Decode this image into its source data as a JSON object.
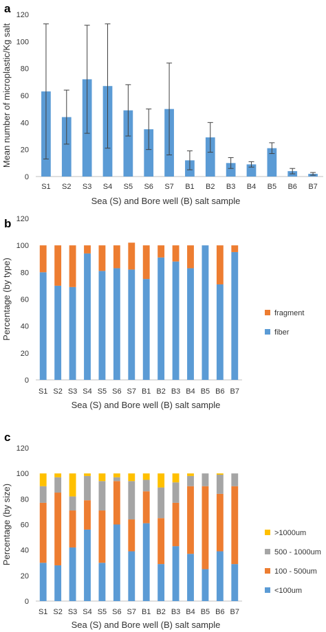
{
  "chart_data": [
    {
      "panel": "a",
      "type": "bar",
      "xlabel": "Sea (S) and Bore well (B) salt sample",
      "ylabel": "Mean number of microplastic/Kg salt",
      "categories": [
        "S1",
        "S2",
        "S3",
        "S4",
        "S5",
        "S6",
        "S7",
        "B1",
        "B2",
        "B3",
        "B4",
        "B5",
        "B6",
        "B7"
      ],
      "ylim": [
        0,
        120
      ],
      "yticks": [
        0,
        20,
        40,
        60,
        80,
        100,
        120
      ],
      "grid": false,
      "legend": "none",
      "colors": {
        "bar": "#5B9BD5",
        "error": "#404040"
      },
      "series": [
        {
          "values": [
            63,
            44,
            72,
            67,
            49,
            35,
            50,
            12,
            29,
            10,
            9,
            21,
            4,
            2
          ],
          "error": [
            50,
            20,
            40,
            46,
            19,
            15,
            34,
            7,
            11,
            4,
            2,
            4,
            2,
            1
          ]
        }
      ]
    },
    {
      "panel": "b",
      "type": "bar",
      "stacked": true,
      "xlabel": "Sea  (S) and Bore well  (B)  salt sample",
      "ylabel": "Percentage (by type)",
      "categories": [
        "S1",
        "S2",
        "S3",
        "S4",
        "S5",
        "S6",
        "S7",
        "B1",
        "B2",
        "B3",
        "B4",
        "B5",
        "B6",
        "B7"
      ],
      "ylim": [
        0,
        120
      ],
      "yticks": [
        0,
        20,
        40,
        60,
        80,
        100,
        120
      ],
      "grid": false,
      "legend": "right",
      "series": [
        {
          "name": "fiber",
          "color": "#5B9BD5",
          "values": [
            80,
            70,
            69,
            94,
            81,
            83,
            82,
            75,
            91,
            88,
            83,
            100,
            71,
            95
          ]
        },
        {
          "name": "fragment",
          "color": "#ED7D31",
          "values": [
            20,
            30,
            31,
            6,
            19,
            17,
            20,
            25,
            9,
            12,
            17,
            0,
            29,
            5
          ]
        }
      ]
    },
    {
      "panel": "c",
      "type": "bar",
      "stacked": true,
      "xlabel": "Sea (S) and Bore well (B) salt sample",
      "ylabel": "Percentage (by size)",
      "categories": [
        "S1",
        "S2",
        "S3",
        "S4",
        "S5",
        "S6",
        "S7",
        "B1",
        "B2",
        "B3",
        "B4",
        "B5",
        "B6",
        "B7"
      ],
      "ylim": [
        0,
        120
      ],
      "yticks": [
        0,
        20,
        40,
        60,
        80,
        100,
        120
      ],
      "grid": false,
      "legend": "right",
      "series": [
        {
          "name": "<100um",
          "color": "#5B9BD5",
          "values": [
            30,
            28,
            42,
            56,
            30,
            60,
            39,
            61,
            29,
            43,
            37,
            25,
            39,
            29
          ]
        },
        {
          "name": "100 - 500um",
          "color": "#ED7D31",
          "values": [
            47,
            57,
            29,
            23,
            41,
            34,
            25,
            25,
            36,
            34,
            53,
            65,
            45,
            61
          ]
        },
        {
          "name": "500 - 1000um",
          "color": "#A5A5A5",
          "values": [
            13,
            12,
            11,
            19,
            23,
            3,
            30,
            9,
            24,
            16,
            8,
            10,
            15,
            10
          ]
        },
        {
          "name": ">1000um",
          "color": "#FFC000",
          "values": [
            10,
            3,
            18,
            2,
            6,
            3,
            6,
            5,
            11,
            7,
            2,
            0,
            1,
            0
          ]
        }
      ]
    }
  ]
}
